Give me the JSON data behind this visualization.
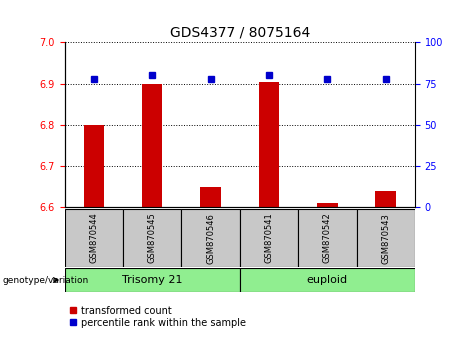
{
  "title": "GDS4377 / 8075164",
  "samples": [
    "GSM870544",
    "GSM870545",
    "GSM870546",
    "GSM870541",
    "GSM870542",
    "GSM870543"
  ],
  "red_bar_values": [
    6.8,
    6.9,
    6.65,
    6.905,
    6.61,
    6.64
  ],
  "blue_dot_values": [
    78,
    80,
    78,
    80,
    78,
    78
  ],
  "ylim_left": [
    6.6,
    7.0
  ],
  "ylim_right": [
    0,
    100
  ],
  "yticks_left": [
    6.6,
    6.7,
    6.8,
    6.9,
    7.0
  ],
  "yticks_right": [
    0,
    25,
    50,
    75,
    100
  ],
  "bar_color": "#CC0000",
  "dot_color": "#0000CC",
  "bar_bottom": 6.6,
  "legend_red": "transformed count",
  "legend_blue": "percentile rank within the sample",
  "genotype_label": "genotype/variation",
  "title_fontsize": 10,
  "tick_fontsize": 7,
  "group_label_fontsize": 8,
  "sample_fontsize": 6,
  "legend_fontsize": 7,
  "trisomy_label": "Trisomy 21",
  "euploid_label": "euploid",
  "gray_color": "#C8C8C8",
  "green_color": "#90EE90"
}
